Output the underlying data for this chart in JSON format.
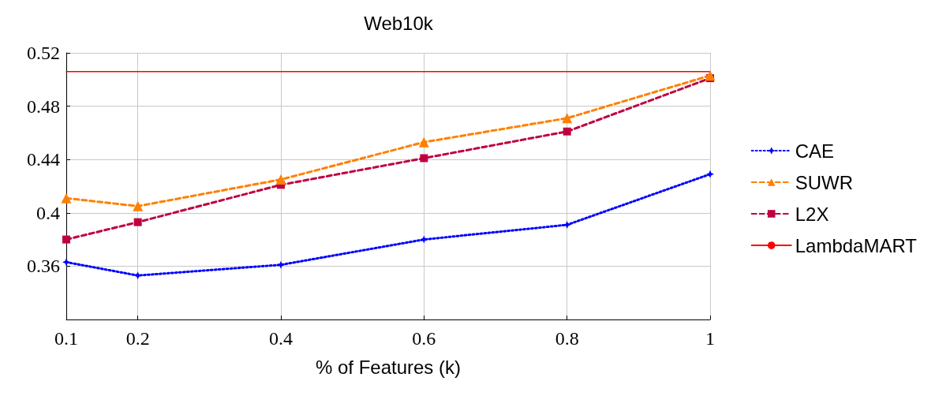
{
  "chart_data": {
    "type": "line",
    "title": "Web10k",
    "xlabel": "% of Features (k)",
    "x": [
      0.1,
      0.2,
      0.4,
      0.6,
      0.8,
      1
    ],
    "series": [
      {
        "name": "CAE",
        "color": "#0000ff",
        "values": [
          0.363,
          0.353,
          0.361,
          0.38,
          0.391,
          0.429
        ],
        "marker": "star",
        "line_style": "dotted"
      },
      {
        "name": "SUWR",
        "color": "#ff8000",
        "values": [
          0.411,
          0.405,
          0.425,
          0.453,
          0.471,
          0.503
        ],
        "marker": "triangle",
        "line_style": "dashed"
      },
      {
        "name": "L2X",
        "color": "#bf0040",
        "values": [
          0.38,
          0.393,
          0.421,
          0.441,
          0.461,
          0.501
        ],
        "marker": "square",
        "line_style": "dashed"
      },
      {
        "name": "LambdaMART",
        "color": "#ff0000",
        "x": [
          0.1,
          1
        ],
        "values": [
          0.506,
          0.506
        ],
        "marker": "none",
        "line_style": "solid"
      }
    ],
    "xlim": [
      0.1,
      1
    ],
    "xticks": [
      0.1,
      0.2,
      0.4,
      0.6,
      0.8,
      1
    ],
    "ylim": [
      0.32,
      0.52
    ],
    "yticks": [
      0.36,
      0.4,
      0.44,
      0.48,
      0.52
    ],
    "grid": true,
    "legend": "right"
  }
}
